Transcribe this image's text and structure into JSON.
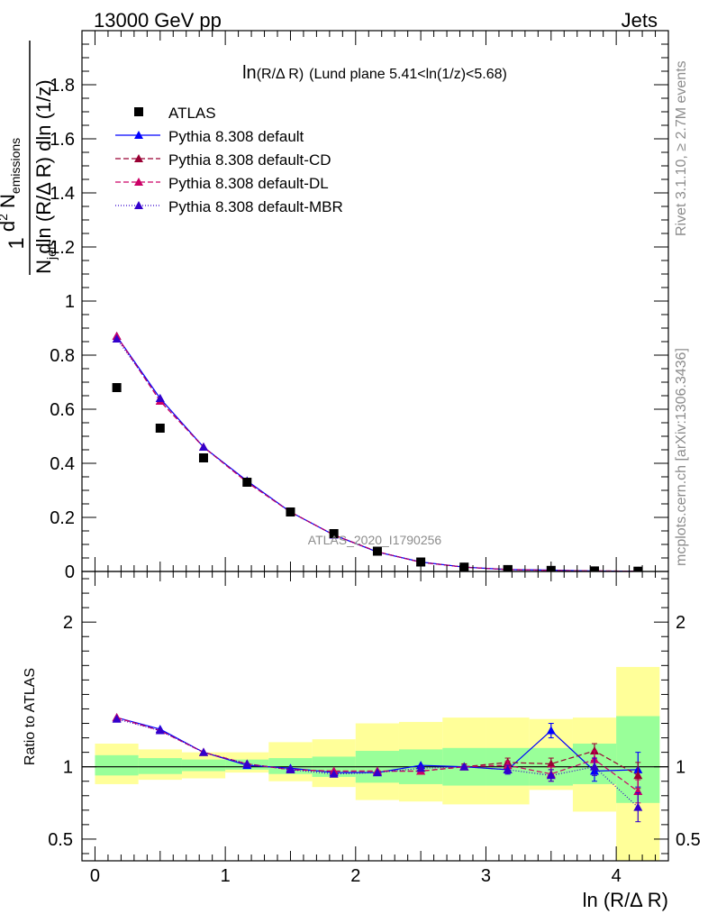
{
  "header": {
    "energy_label": "13000 GeV pp",
    "process_label": "Jets"
  },
  "side_labels": {
    "rivet": "Rivet 3.1.10, ≥ 2.7M events",
    "mcplots": "mcplots.cern.ch [arXiv:1306.3436]"
  },
  "watermark": "ATLAS_2020_I1790256",
  "chart_data": {
    "type": "scatter",
    "title_main": "ln",
    "title_var": "(R/Δ R)",
    "title_cut": "(Lund plane 5.41<ln(1/z)<5.68)",
    "xlabel": "ln (R/Δ R)",
    "ylabel_top": {
      "frac_num": "1",
      "frac_den_pre": "N",
      "frac_den_sub": "jets",
      "num_pre": "d",
      "num_sup": "2",
      "num_post": " N",
      "num_sub": "emissions",
      "den": "dln (R/Δ R) dln (1/z)"
    },
    "ylabel_bottom": "Ratio to ATLAS",
    "xlim": [
      -0.1,
      4.4
    ],
    "ylim_main": [
      0,
      2.0
    ],
    "ylim_ratio": [
      0.35,
      2.35
    ],
    "x_ticks": [
      "0",
      "1",
      "2",
      "3",
      "4"
    ],
    "y_ticks_main": [
      "0",
      "0.2",
      "0.4",
      "0.6",
      "0.8",
      "1",
      "1.2",
      "1.4",
      "1.6",
      "1.8"
    ],
    "y_ticks_ratio": [
      "0.5",
      "1",
      "2"
    ],
    "bin_edges": [
      0.0,
      0.333,
      0.667,
      1.0,
      1.333,
      1.667,
      2.0,
      2.333,
      2.667,
      3.0,
      3.333,
      3.667,
      4.0,
      4.333
    ],
    "x": [
      0.167,
      0.5,
      0.833,
      1.167,
      1.5,
      1.833,
      2.167,
      2.5,
      2.833,
      3.167,
      3.5,
      3.833,
      4.167
    ],
    "data": {
      "name": "ATLAS",
      "values": [
        0.68,
        0.53,
        0.42,
        0.33,
        0.22,
        0.14,
        0.075,
        0.035,
        0.016,
        0.007,
        0.004,
        0.002,
        0.001
      ],
      "band_inner": [
        [
          0.94,
          1.08
        ],
        [
          0.95,
          1.06
        ],
        [
          0.97,
          1.05
        ],
        [
          0.98,
          1.05
        ],
        [
          0.95,
          1.06
        ],
        [
          0.93,
          1.07
        ],
        [
          0.89,
          1.11
        ],
        [
          0.88,
          1.12
        ],
        [
          0.87,
          1.13
        ],
        [
          0.87,
          1.13
        ],
        [
          0.87,
          1.13
        ],
        [
          0.88,
          1.16
        ],
        [
          0.75,
          1.35
        ]
      ],
      "band_outer": [
        [
          0.88,
          1.16
        ],
        [
          0.91,
          1.12
        ],
        [
          0.92,
          1.1
        ],
        [
          0.96,
          1.1
        ],
        [
          0.9,
          1.17
        ],
        [
          0.86,
          1.19
        ],
        [
          0.77,
          1.3
        ],
        [
          0.76,
          1.31
        ],
        [
          0.74,
          1.34
        ],
        [
          0.74,
          1.34
        ],
        [
          0.84,
          1.33
        ],
        [
          0.69,
          1.34
        ],
        [
          0.35,
          1.69
        ]
      ]
    },
    "series": [
      {
        "name": "Pythia 8.308 default",
        "color": "#0000ff",
        "dash": "",
        "values": [
          0.87,
          0.64,
          0.46,
          0.335,
          0.22,
          0.135,
          0.072,
          0.035,
          0.016,
          0.0072,
          0.005,
          0.0019,
          0.001
        ],
        "ratio": [
          1.34,
          1.26,
          1.1,
          1.01,
          0.99,
          0.96,
          0.96,
          1.01,
          1.0,
          0.98,
          1.25,
          0.97,
          0.98
        ],
        "ratio_err": [
          0,
          0,
          0,
          0,
          0,
          0,
          0,
          0,
          0.01,
          0.03,
          0.05,
          0.07,
          0.12
        ]
      },
      {
        "name": "Pythia 8.308 default-CD",
        "color": "#990033",
        "dash": "6,3",
        "values": [
          0.87,
          0.63,
          0.46,
          0.33,
          0.22,
          0.135,
          0.073,
          0.034,
          0.016,
          0.0072,
          0.0041,
          0.0021,
          0.0009
        ],
        "ratio": [
          1.34,
          1.25,
          1.1,
          1.02,
          0.98,
          0.97,
          0.97,
          0.97,
          1.0,
          1.03,
          1.02,
          1.11,
          0.94
        ],
        "ratio_err": [
          0,
          0,
          0,
          0,
          0,
          0,
          0,
          0,
          0.02,
          0.03,
          0.04,
          0.05,
          0.09
        ]
      },
      {
        "name": "Pythia 8.308 default-DL",
        "color": "#cc0066",
        "dash": "6,3",
        "values": [
          0.87,
          0.63,
          0.46,
          0.33,
          0.22,
          0.135,
          0.073,
          0.034,
          0.016,
          0.007,
          0.0038,
          0.0022,
          0.0008
        ],
        "ratio": [
          1.34,
          1.25,
          1.1,
          1.02,
          0.98,
          0.97,
          0.97,
          0.97,
          1.0,
          1.01,
          0.95,
          1.05,
          0.83
        ],
        "ratio_err": [
          0,
          0,
          0,
          0,
          0,
          0,
          0,
          0,
          0.01,
          0.03,
          0.05,
          0.06,
          0.08
        ]
      },
      {
        "name": "Pythia 8.308 default-MBR",
        "color": "#3300cc",
        "dash": "1,2",
        "values": [
          0.86,
          0.64,
          0.46,
          0.335,
          0.22,
          0.135,
          0.072,
          0.035,
          0.016,
          0.0069,
          0.0039,
          0.002,
          0.0007
        ],
        "ratio": [
          1.33,
          1.25,
          1.1,
          1.02,
          0.98,
          0.95,
          0.96,
          0.99,
          1.0,
          0.98,
          0.94,
          1.0,
          0.72
        ],
        "ratio_err": [
          0,
          0,
          0,
          0,
          0,
          0,
          0,
          0,
          0.01,
          0.03,
          0.04,
          0.06,
          0.1
        ]
      }
    ],
    "legend_position": "top-left",
    "colors": {
      "band_inner": "#99ff99",
      "band_outer": "#ffff99",
      "data": "#000000"
    }
  }
}
